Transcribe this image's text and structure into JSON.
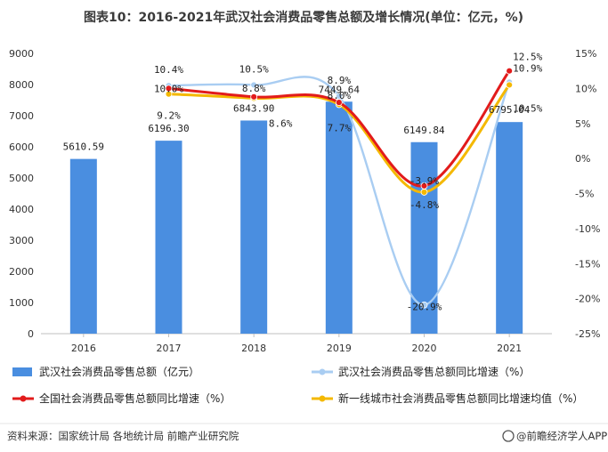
{
  "title": "图表10：2016-2021年武汉社会消费品零售总额及增长情况(单位：亿元，%)",
  "source": "资料来源：国家统计局 各地统计局 前瞻产业研究院",
  "brand": "@前瞻经济学人APP",
  "colors": {
    "bar": "#4a8ee0",
    "wuhan_growth": "#a9cdf2",
    "national_growth": "#e21b1b",
    "tier1_growth": "#f4b800"
  },
  "chart_data": {
    "type": "bar",
    "categories": [
      "2016",
      "2017",
      "2018",
      "2019",
      "2020",
      "2021"
    ],
    "series": [
      {
        "name": "武汉社会消费品零售总额（亿元）",
        "type": "bar",
        "axis": "left",
        "values": [
          5610.59,
          6196.3,
          6843.9,
          7449.64,
          6149.84,
          6795.04
        ],
        "labels": [
          "5610.59",
          "6196.30",
          "6843.90",
          "7449.64",
          "6149.84",
          "6795.04"
        ]
      },
      {
        "name": "武汉社会消费品零售总额同比增速（%）",
        "type": "line",
        "axis": "right",
        "values": [
          null,
          10.4,
          10.5,
          8.9,
          -20.9,
          10.9
        ],
        "labels": [
          "",
          "10.4%",
          "10.5%",
          "8.9%",
          "-20.9%",
          "10.9%"
        ]
      },
      {
        "name": "全国社会消费品零售总额同比增速（%）",
        "type": "line",
        "axis": "right",
        "values": [
          null,
          10.0,
          8.8,
          8.0,
          -3.9,
          12.5
        ],
        "labels": [
          "",
          "10.0%",
          "8.8%",
          "8.0%",
          "-3.9%",
          "12.5%"
        ]
      },
      {
        "name": "新一线城市社会消费品零售总额同比增速均值（%）",
        "type": "line",
        "axis": "right",
        "values": [
          null,
          9.2,
          8.6,
          7.7,
          -4.8,
          10.5
        ],
        "labels": [
          "",
          "9.2%",
          "8.6%",
          "7.7%",
          "-4.8%",
          "10.5%"
        ]
      }
    ],
    "y_left": {
      "range": [
        0,
        9000
      ],
      "ticks": [
        "0",
        "1000",
        "2000",
        "3000",
        "4000",
        "5000",
        "6000",
        "7000",
        "8000",
        "9000"
      ]
    },
    "y_right": {
      "range": [
        -25,
        15
      ],
      "ticks": [
        "-25%",
        "-20%",
        "-15%",
        "-10%",
        "-5%",
        "0%",
        "5%",
        "10%",
        "15%"
      ]
    },
    "grid": false,
    "legend_position": "bottom"
  }
}
